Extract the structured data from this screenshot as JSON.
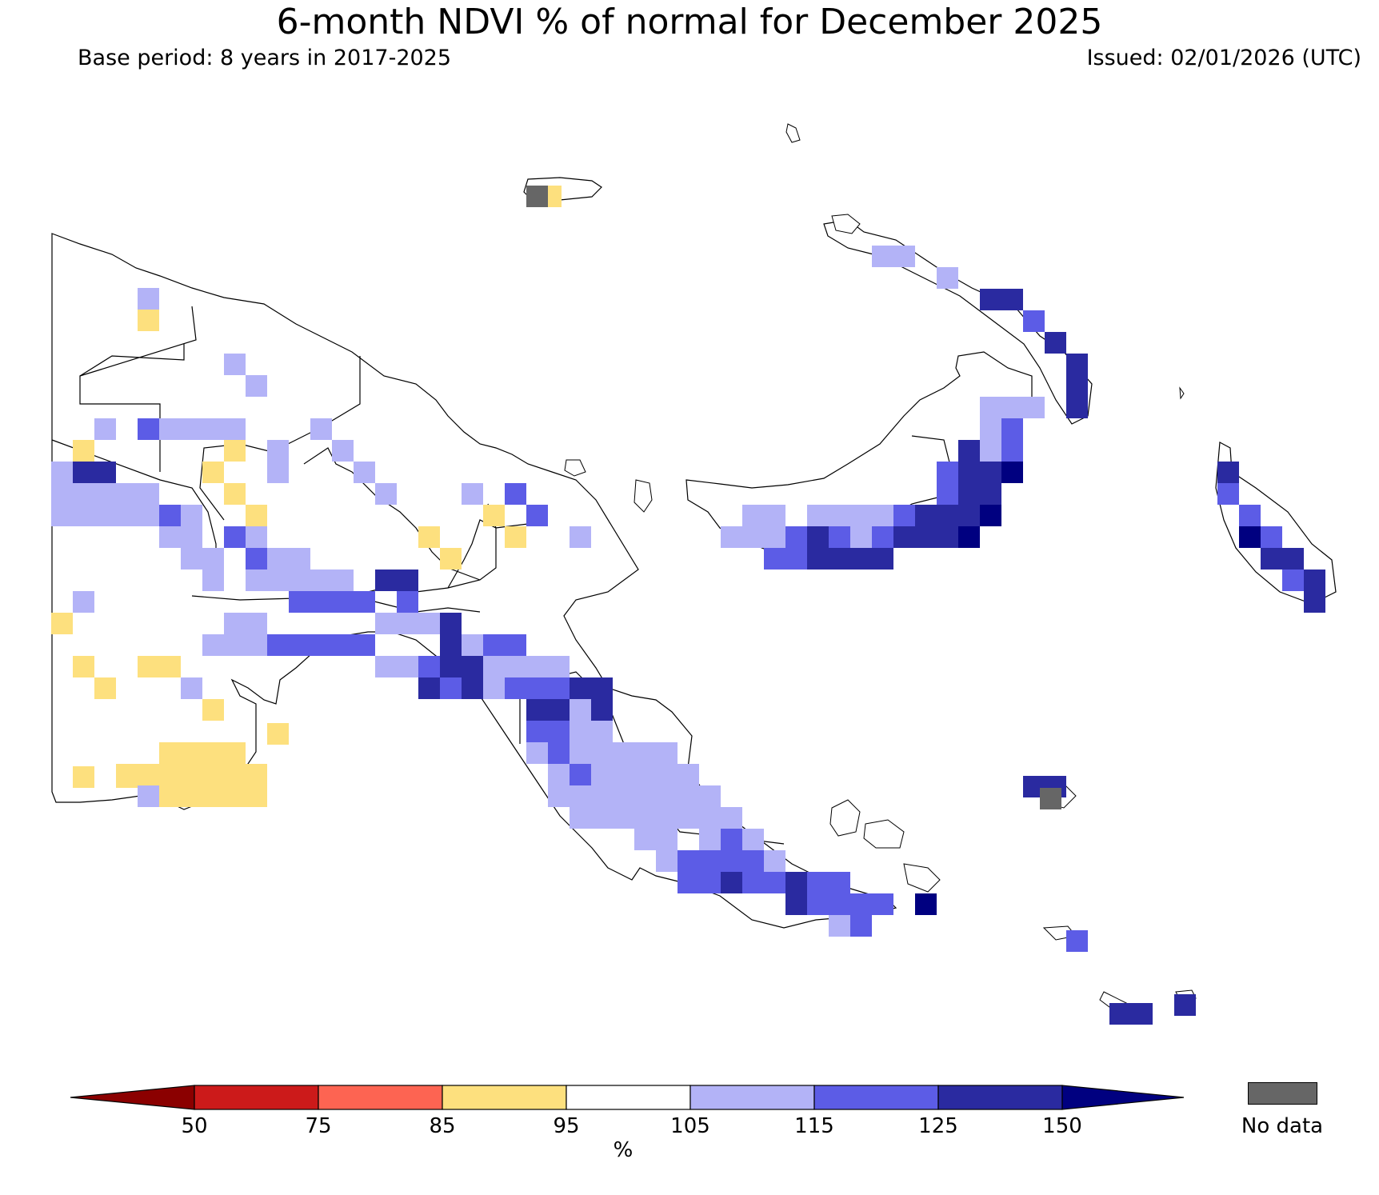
{
  "header": {
    "title": "6-month NDVI % of normal for December 2025",
    "base_period": "Base period: 8 years in 2017-2025",
    "issued": "Issued: 02/01/2026 (UTC)"
  },
  "legend": {
    "unit_label": "%",
    "ticks": [
      "50",
      "75",
      "85",
      "95",
      "105",
      "115",
      "125",
      "150"
    ],
    "bins": [
      {
        "range": "<50",
        "color": "#8b0000"
      },
      {
        "range": "50-75",
        "color": "#cc1a1a"
      },
      {
        "range": "75-85",
        "color": "#fd6452"
      },
      {
        "range": "85-95",
        "color": "#fde07e"
      },
      {
        "range": "95-105",
        "color": "#ffffff"
      },
      {
        "range": "105-115",
        "color": "#b3b3f7"
      },
      {
        "range": "115-125",
        "color": "#5c5ce6"
      },
      {
        "range": "125-150",
        "color": "#2a2aa0"
      },
      {
        "range": ">150",
        "color": "#000080"
      }
    ],
    "no_data_label": "No data",
    "no_data_color": "#666666"
  },
  "chart_data": {
    "type": "heatmap",
    "title": "6-month NDVI % of normal for December 2025",
    "region": "Papua New Guinea",
    "units": "% of normal",
    "summary": {
      "western_lowlands": "mostly 95-105 with scattered 85-95 (below normal) cells, largest cluster in the southwest",
      "highlands_and_gulf": "105-125 above normal, some 125-150 cells",
      "new_britain_east": "115-150, with a few >150 cells",
      "new_ireland": "105-150",
      "bougainville": "115-150, with >150 cells",
      "papuan_peninsula_and_islands": "105-150 above normal",
      "no_data": "a few small island fragments"
    }
  }
}
